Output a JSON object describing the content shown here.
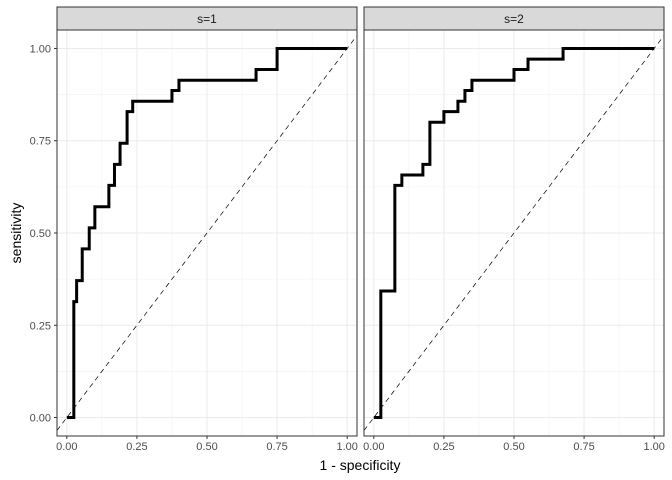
{
  "chart_data": {
    "type": "line",
    "xlabel": "1 - specificity",
    "ylabel": "sensitivity",
    "xlim": [
      -0.035,
      1.035
    ],
    "ylim": [
      -0.05,
      1.05
    ],
    "x_ticks": [
      "0.00",
      "0.25",
      "0.50",
      "0.75",
      "1.00"
    ],
    "y_ticks": [
      "0.00",
      "0.25",
      "0.50",
      "0.75",
      "1.00"
    ],
    "grid": true,
    "reference_line": "diagonal dashed",
    "line_color": "#000000",
    "panels": [
      {
        "label": "s=1",
        "x": [
          0.0,
          0.025,
          0.025,
          0.035,
          0.035,
          0.055,
          0.055,
          0.08,
          0.08,
          0.1,
          0.1,
          0.15,
          0.15,
          0.17,
          0.17,
          0.19,
          0.19,
          0.215,
          0.215,
          0.235,
          0.235,
          0.375,
          0.375,
          0.4,
          0.4,
          0.675,
          0.675,
          0.75,
          0.75,
          1.0
        ],
        "y": [
          0.0,
          0.0,
          0.314,
          0.314,
          0.371,
          0.371,
          0.457,
          0.457,
          0.514,
          0.514,
          0.571,
          0.571,
          0.629,
          0.629,
          0.686,
          0.686,
          0.743,
          0.743,
          0.829,
          0.829,
          0.857,
          0.857,
          0.886,
          0.886,
          0.914,
          0.914,
          0.943,
          0.943,
          1.0,
          1.0
        ]
      },
      {
        "label": "s=2",
        "x": [
          0.0,
          0.025,
          0.025,
          0.075,
          0.075,
          0.1,
          0.1,
          0.175,
          0.175,
          0.2,
          0.2,
          0.25,
          0.25,
          0.3,
          0.3,
          0.325,
          0.325,
          0.35,
          0.35,
          0.5,
          0.5,
          0.55,
          0.55,
          0.675,
          0.675,
          0.75,
          0.75,
          1.0
        ],
        "y": [
          0.0,
          0.0,
          0.343,
          0.343,
          0.629,
          0.629,
          0.657,
          0.657,
          0.686,
          0.686,
          0.8,
          0.8,
          0.829,
          0.829,
          0.857,
          0.857,
          0.886,
          0.886,
          0.914,
          0.914,
          0.943,
          0.943,
          0.971,
          0.971,
          1.0,
          1.0,
          1.0,
          1.0
        ]
      }
    ]
  }
}
